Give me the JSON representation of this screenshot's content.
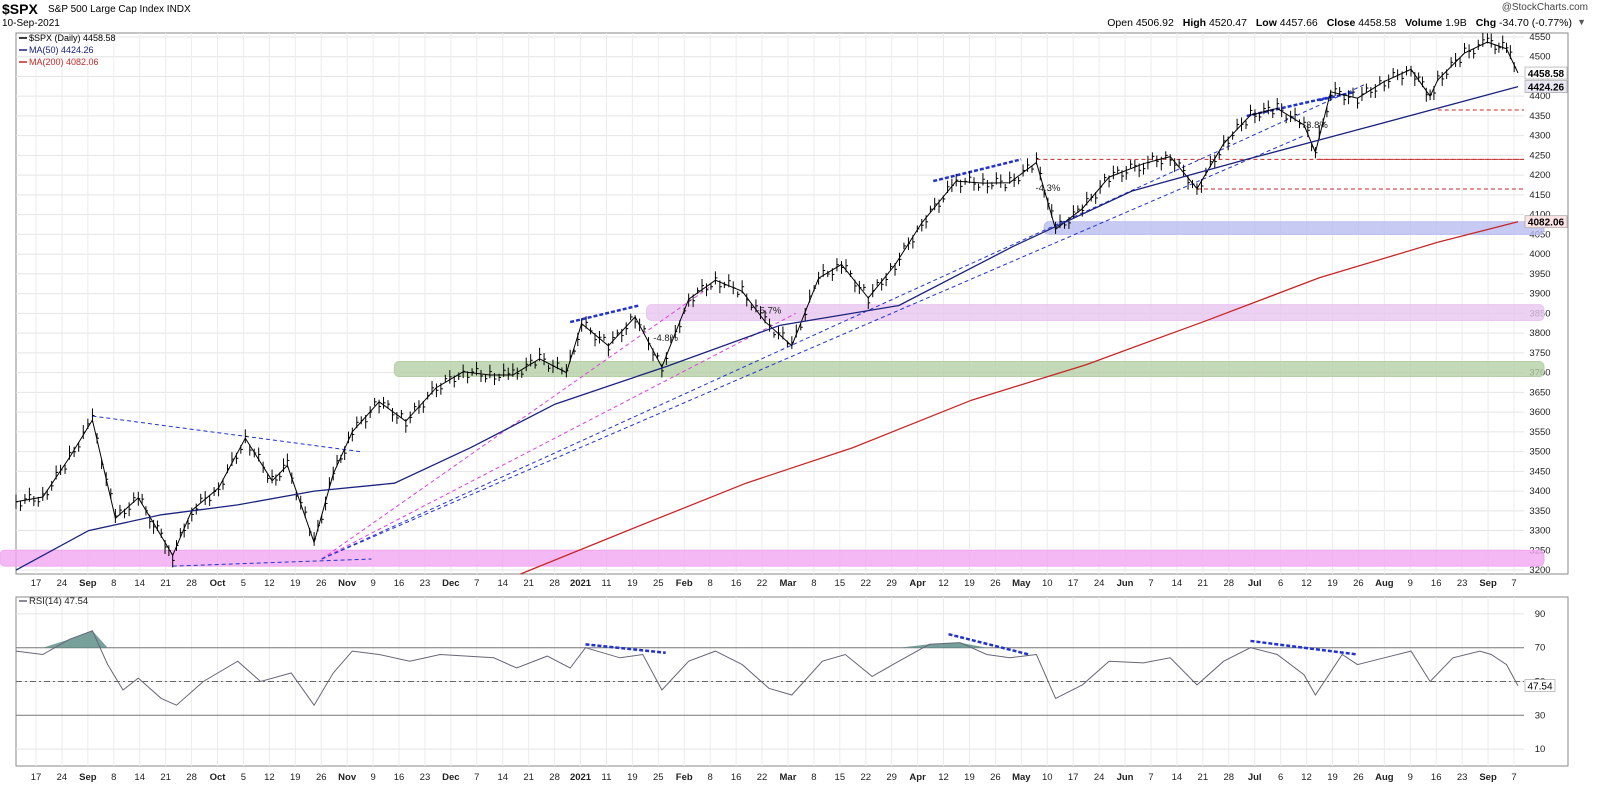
{
  "header": {
    "symbol": "$SPX",
    "description": "S&P 500 Large Cap Index INDX",
    "date": "10-Sep-2021",
    "watermark": "@StockCharts.com",
    "open_label": "Open",
    "open": "4506.92",
    "high_label": "High",
    "high": "4520.47",
    "low_label": "Low",
    "low": "4457.66",
    "close_label": "Close",
    "close": "4458.58",
    "volume_label": "Volume",
    "volume": "1.9B",
    "chg_label": "Chg",
    "chg": "-34.70 (-0.77%)",
    "dropdown_icon": "triangle-down-icon"
  },
  "legend": [
    {
      "text": "$SPX (Daily) 4458.58",
      "color": "#000000"
    },
    {
      "text": "MA(50) 4424.26",
      "color": "#1a237e"
    },
    {
      "text": "MA(200) 4082.06",
      "color": "#c62828"
    }
  ],
  "rsi_legend": "RSI(14) 47.54",
  "x_axis": {
    "ticks": [
      "17",
      "24",
      "Sep",
      "8",
      "14",
      "21",
      "28",
      "Oct",
      "5",
      "12",
      "19",
      "26",
      "Nov",
      "9",
      "16",
      "23",
      "Dec",
      "7",
      "14",
      "21",
      "28",
      "2021",
      "11",
      "19",
      "25",
      "Feb",
      "8",
      "16",
      "22",
      "Mar",
      "8",
      "15",
      "22",
      "29",
      "Apr",
      "12",
      "19",
      "26",
      "May",
      "10",
      "17",
      "24",
      "Jun",
      "7",
      "14",
      "21",
      "28",
      "Jul",
      "6",
      "12",
      "19",
      "26",
      "Aug",
      "9",
      "16",
      "23",
      "Sep",
      "7"
    ],
    "bold": [
      "Sep",
      "Oct",
      "Nov",
      "Dec",
      "2021",
      "Feb",
      "Mar",
      "Apr",
      "May",
      "Jun",
      "Jul",
      "Aug",
      "Sep"
    ]
  },
  "chart_data": [
    {
      "type": "line",
      "title": "$SPX (Daily)",
      "xlabel": "",
      "ylabel": "",
      "ylim": [
        3190,
        4560
      ],
      "y_ticks": [
        3200,
        3250,
        3300,
        3350,
        3400,
        3450,
        3500,
        3550,
        3600,
        3650,
        3700,
        3750,
        3800,
        3850,
        3900,
        3950,
        4000,
        4050,
        4100,
        4150,
        4200,
        4250,
        4300,
        4350,
        4400,
        4450,
        4500,
        4550
      ],
      "x_range": [
        "2020-08-13",
        "2021-09-10"
      ],
      "grid": true,
      "legend_position": "top-left",
      "last_value_labels": [
        {
          "text": "4458.58",
          "value": 4458.58,
          "bg": "#ffffff"
        },
        {
          "text": "4424.26",
          "value": 4424.26,
          "bg": "#e8e8f5"
        },
        {
          "text": "4082.06",
          "value": 4082.06,
          "bg": "#fde4e4"
        }
      ],
      "series": [
        {
          "name": "$SPX (Daily)",
          "color": "#000000",
          "points": [
            [
              "2020-08-13",
              3373
            ],
            [
              "2020-08-20",
              3385
            ],
            [
              "2020-08-27",
              3485
            ],
            [
              "2020-09-02",
              3580
            ],
            [
              "2020-09-08",
              3331
            ],
            [
              "2020-09-14",
              3383
            ],
            [
              "2020-09-18",
              3319
            ],
            [
              "2020-09-23",
              3237
            ],
            [
              "2020-09-28",
              3351
            ],
            [
              "2020-10-05",
              3408
            ],
            [
              "2020-10-12",
              3534
            ],
            [
              "2020-10-19",
              3426
            ],
            [
              "2020-10-23",
              3465
            ],
            [
              "2020-10-30",
              3270
            ],
            [
              "2020-11-04",
              3443
            ],
            [
              "2020-11-09",
              3550
            ],
            [
              "2020-11-16",
              3626
            ],
            [
              "2020-11-23",
              3577
            ],
            [
              "2020-12-01",
              3662
            ],
            [
              "2020-12-08",
              3702
            ],
            [
              "2020-12-15",
              3694
            ],
            [
              "2020-12-21",
              3694
            ],
            [
              "2020-12-28",
              3735
            ],
            [
              "2021-01-04",
              3700
            ],
            [
              "2021-01-08",
              3824
            ],
            [
              "2021-01-15",
              3768
            ],
            [
              "2021-01-22",
              3841
            ],
            [
              "2021-01-29",
              3714
            ],
            [
              "2021-02-05",
              3886
            ],
            [
              "2021-02-12",
              3934
            ],
            [
              "2021-02-19",
              3906
            ],
            [
              "2021-02-25",
              3829
            ],
            [
              "2021-03-04",
              3768
            ],
            [
              "2021-03-11",
              3939
            ],
            [
              "2021-03-17",
              3974
            ],
            [
              "2021-03-24",
              3889
            ],
            [
              "2021-03-31",
              3973
            ],
            [
              "2021-04-07",
              4079
            ],
            [
              "2021-04-16",
              4185
            ],
            [
              "2021-04-23",
              4180
            ],
            [
              "2021-04-30",
              4181
            ],
            [
              "2021-05-07",
              4232
            ],
            [
              "2021-05-12",
              4063
            ],
            [
              "2021-05-19",
              4115
            ],
            [
              "2021-05-26",
              4195
            ],
            [
              "2021-06-04",
              4229
            ],
            [
              "2021-06-11",
              4247
            ],
            [
              "2021-06-18",
              4166
            ],
            [
              "2021-06-25",
              4280
            ],
            [
              "2021-07-02",
              4352
            ],
            [
              "2021-07-09",
              4369
            ],
            [
              "2021-07-16",
              4327
            ],
            [
              "2021-07-19",
              4258
            ],
            [
              "2021-07-23",
              4411
            ],
            [
              "2021-07-30",
              4395
            ],
            [
              "2021-08-06",
              4437
            ],
            [
              "2021-08-13",
              4468
            ],
            [
              "2021-08-18",
              4400
            ],
            [
              "2021-08-20",
              4441
            ],
            [
              "2021-08-27",
              4509
            ],
            [
              "2021-09-02",
              4537
            ],
            [
              "2021-09-07",
              4520
            ],
            [
              "2021-09-10",
              4458.58
            ]
          ]
        },
        {
          "name": "MA(50)",
          "color": "#1a237e",
          "points": [
            [
              "2020-08-13",
              3200
            ],
            [
              "2020-09-01",
              3300
            ],
            [
              "2020-09-20",
              3340
            ],
            [
              "2020-10-10",
              3365
            ],
            [
              "2020-10-30",
              3400
            ],
            [
              "2020-11-20",
              3420
            ],
            [
              "2020-12-10",
              3510
            ],
            [
              "2021-01-01",
              3620
            ],
            [
              "2021-01-30",
              3715
            ],
            [
              "2021-03-01",
              3820
            ],
            [
              "2021-04-01",
              3870
            ],
            [
              "2021-05-01",
              4020
            ],
            [
              "2021-06-01",
              4160
            ],
            [
              "2021-07-01",
              4240
            ],
            [
              "2021-08-01",
              4320
            ],
            [
              "2021-09-10",
              4424.26
            ]
          ]
        },
        {
          "name": "MA(200)",
          "color": "#c62828",
          "points": [
            [
              "2020-12-23",
              3190
            ],
            [
              "2021-01-20",
              3300
            ],
            [
              "2021-02-20",
              3420
            ],
            [
              "2021-03-20",
              3510
            ],
            [
              "2021-04-20",
              3630
            ],
            [
              "2021-05-20",
              3720
            ],
            [
              "2021-06-20",
              3830
            ],
            [
              "2021-07-20",
              3940
            ],
            [
              "2021-08-20",
              4030
            ],
            [
              "2021-09-10",
              4082.06
            ]
          ]
        }
      ],
      "zones": [
        {
          "from": 3250,
          "to": 3210,
          "x0": "2020-08-13",
          "x1": "2021-09-10",
          "color": "#f1a8f1"
        },
        {
          "from": 3728,
          "to": 3690,
          "x0": "2020-11-20",
          "x1": "2021-09-10",
          "color": "#b5cfa6"
        },
        {
          "from": 3872,
          "to": 3832,
          "x0": "2021-01-25",
          "x1": "2021-09-10",
          "color": "#e9c6ef"
        },
        {
          "from": 4082,
          "to": 4050,
          "x0": "2021-05-09",
          "x1": "2021-09-10",
          "color": "#b9bdf0"
        }
      ],
      "annotations": [
        {
          "text": "-4.8%",
          "x": "2021-01-30",
          "y": 3780
        },
        {
          "text": "-5.7%",
          "x": "2021-02-26",
          "y": 3850
        },
        {
          "text": "-4.3%",
          "x": "2021-05-10",
          "y": 4160
        },
        {
          "text": "-3.8%",
          "x": "2021-07-19",
          "y": 4320
        }
      ]
    },
    {
      "type": "line",
      "title": "RSI(14)",
      "xlabel": "",
      "ylabel": "",
      "ylim": [
        0,
        100
      ],
      "y_ticks": [
        10,
        30,
        50,
        70,
        90
      ],
      "x_range": [
        "2020-08-13",
        "2021-09-10"
      ],
      "last_value_label": "47.54",
      "series": [
        {
          "name": "RSI(14)",
          "color": "#666677",
          "points": [
            [
              "2020-08-13",
              68
            ],
            [
              "2020-08-20",
              66
            ],
            [
              "2020-08-27",
              75
            ],
            [
              "2020-09-02",
              80
            ],
            [
              "2020-09-06",
              60
            ],
            [
              "2020-09-10",
              45
            ],
            [
              "2020-09-14",
              52
            ],
            [
              "2020-09-20",
              40
            ],
            [
              "2020-09-24",
              36
            ],
            [
              "2020-10-01",
              50
            ],
            [
              "2020-10-10",
              62
            ],
            [
              "2020-10-16",
              50
            ],
            [
              "2020-10-24",
              55
            ],
            [
              "2020-10-30",
              36
            ],
            [
              "2020-11-04",
              55
            ],
            [
              "2020-11-09",
              68
            ],
            [
              "2020-11-16",
              66
            ],
            [
              "2020-11-24",
              62
            ],
            [
              "2020-12-02",
              66
            ],
            [
              "2020-12-09",
              65
            ],
            [
              "2020-12-16",
              64
            ],
            [
              "2020-12-22",
              58
            ],
            [
              "2020-12-30",
              65
            ],
            [
              "2021-01-05",
              58
            ],
            [
              "2021-01-09",
              70
            ],
            [
              "2021-01-18",
              64
            ],
            [
              "2021-01-24",
              66
            ],
            [
              "2021-01-29",
              45
            ],
            [
              "2021-02-05",
              62
            ],
            [
              "2021-02-12",
              68
            ],
            [
              "2021-02-19",
              60
            ],
            [
              "2021-02-26",
              46
            ],
            [
              "2021-03-04",
              42
            ],
            [
              "2021-03-12",
              62
            ],
            [
              "2021-03-18",
              66
            ],
            [
              "2021-03-25",
              53
            ],
            [
              "2021-04-01",
              62
            ],
            [
              "2021-04-09",
              72
            ],
            [
              "2021-04-17",
              73
            ],
            [
              "2021-04-24",
              66
            ],
            [
              "2021-04-30",
              64
            ],
            [
              "2021-05-07",
              66
            ],
            [
              "2021-05-12",
              40
            ],
            [
              "2021-05-19",
              48
            ],
            [
              "2021-05-26",
              62
            ],
            [
              "2021-06-04",
              61
            ],
            [
              "2021-06-11",
              64
            ],
            [
              "2021-06-18",
              48
            ],
            [
              "2021-06-25",
              62
            ],
            [
              "2021-07-02",
              70
            ],
            [
              "2021-07-09",
              66
            ],
            [
              "2021-07-16",
              54
            ],
            [
              "2021-07-19",
              42
            ],
            [
              "2021-07-26",
              66
            ],
            [
              "2021-07-30",
              60
            ],
            [
              "2021-08-06",
              64
            ],
            [
              "2021-08-13",
              68
            ],
            [
              "2021-08-18",
              50
            ],
            [
              "2021-08-24",
              64
            ],
            [
              "2021-08-31",
              68
            ],
            [
              "2021-09-03",
              66
            ],
            [
              "2021-09-07",
              60
            ],
            [
              "2021-09-10",
              47.54
            ]
          ]
        }
      ]
    }
  ]
}
